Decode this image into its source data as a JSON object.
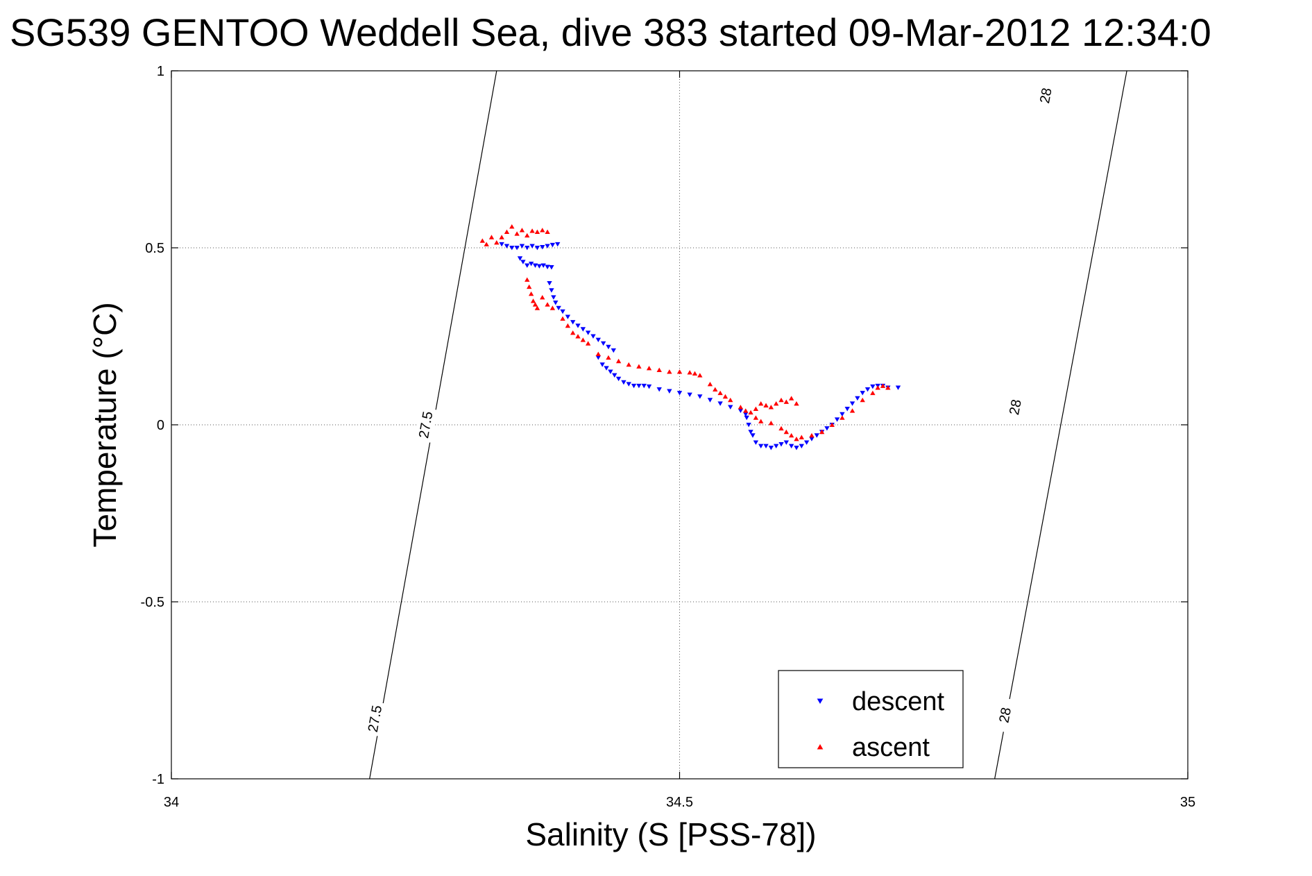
{
  "chart_data": {
    "type": "scatter",
    "title": "SG539 GENTOO Weddell Sea, dive 383 started 09-Mar-2012 12:34:0",
    "xlabel": "Salinity (S [PSS-78])",
    "ylabel": "Temperature (°C)",
    "xlim": [
      34,
      35
    ],
    "ylim": [
      -1,
      1
    ],
    "x_ticks": [
      34,
      34.5,
      35
    ],
    "x_tick_labels": [
      "34",
      "34.5",
      "35"
    ],
    "y_ticks": [
      -1,
      -0.5,
      0,
      0.5,
      1
    ],
    "y_tick_labels": [
      "-1",
      "-0.5",
      "0",
      "0.5",
      "1"
    ],
    "grid": true,
    "legend_position": "bottom-right",
    "contours": [
      {
        "name": "27.5",
        "label_positions": [
          [
            34.25,
            0.0
          ],
          [
            34.2,
            -0.83
          ]
        ],
        "x_at_top": 34.32,
        "x_at_bottom": 34.195
      },
      {
        "name": "28",
        "label_positions": [
          [
            34.86,
            0.93
          ],
          [
            34.83,
            0.05
          ],
          [
            34.82,
            -0.82
          ]
        ],
        "x_at_top": 34.94,
        "x_at_bottom": 34.81
      }
    ],
    "series": [
      {
        "name": "descent",
        "color": "#0000ff",
        "marker": "triangle-down",
        "points": [
          [
            34.325,
            0.51
          ],
          [
            34.33,
            0.505
          ],
          [
            34.335,
            0.5
          ],
          [
            34.34,
            0.5
          ],
          [
            34.345,
            0.505
          ],
          [
            34.35,
            0.5
          ],
          [
            34.355,
            0.505
          ],
          [
            34.36,
            0.5
          ],
          [
            34.365,
            0.502
          ],
          [
            34.37,
            0.505
          ],
          [
            34.375,
            0.508
          ],
          [
            34.38,
            0.51
          ],
          [
            34.343,
            0.47
          ],
          [
            34.346,
            0.46
          ],
          [
            34.35,
            0.45
          ],
          [
            34.354,
            0.455
          ],
          [
            34.358,
            0.45
          ],
          [
            34.362,
            0.448
          ],
          [
            34.366,
            0.45
          ],
          [
            34.37,
            0.446
          ],
          [
            34.374,
            0.445
          ],
          [
            34.372,
            0.4
          ],
          [
            34.374,
            0.38
          ],
          [
            34.376,
            0.36
          ],
          [
            34.378,
            0.345
          ],
          [
            34.381,
            0.33
          ],
          [
            34.385,
            0.32
          ],
          [
            34.39,
            0.305
          ],
          [
            34.395,
            0.29
          ],
          [
            34.4,
            0.28
          ],
          [
            34.405,
            0.27
          ],
          [
            34.41,
            0.26
          ],
          [
            34.415,
            0.25
          ],
          [
            34.42,
            0.24
          ],
          [
            34.425,
            0.23
          ],
          [
            34.43,
            0.22
          ],
          [
            34.435,
            0.21
          ],
          [
            34.42,
            0.19
          ],
          [
            34.424,
            0.17
          ],
          [
            34.428,
            0.16
          ],
          [
            34.432,
            0.15
          ],
          [
            34.436,
            0.14
          ],
          [
            34.44,
            0.13
          ],
          [
            34.445,
            0.12
          ],
          [
            34.45,
            0.115
          ],
          [
            34.455,
            0.11
          ],
          [
            34.46,
            0.11
          ],
          [
            34.465,
            0.11
          ],
          [
            34.47,
            0.108
          ],
          [
            34.48,
            0.1
          ],
          [
            34.49,
            0.095
          ],
          [
            34.5,
            0.09
          ],
          [
            34.51,
            0.085
          ],
          [
            34.52,
            0.08
          ],
          [
            34.53,
            0.07
          ],
          [
            34.54,
            0.06
          ],
          [
            34.55,
            0.05
          ],
          [
            34.56,
            0.04
          ],
          [
            34.565,
            0.03
          ],
          [
            34.566,
            0.02
          ],
          [
            34.568,
            0.0
          ],
          [
            34.57,
            -0.02
          ],
          [
            34.572,
            -0.03
          ],
          [
            34.575,
            -0.05
          ],
          [
            34.58,
            -0.06
          ],
          [
            34.585,
            -0.06
          ],
          [
            34.59,
            -0.065
          ],
          [
            34.595,
            -0.06
          ],
          [
            34.6,
            -0.055
          ],
          [
            34.605,
            -0.05
          ],
          [
            34.61,
            -0.06
          ],
          [
            34.615,
            -0.065
          ],
          [
            34.62,
            -0.06
          ],
          [
            34.625,
            -0.05
          ],
          [
            34.63,
            -0.04
          ],
          [
            34.635,
            -0.03
          ],
          [
            34.64,
            -0.02
          ],
          [
            34.645,
            -0.01
          ],
          [
            34.65,
            0.0
          ],
          [
            34.655,
            0.015
          ],
          [
            34.66,
            0.03
          ],
          [
            34.665,
            0.045
          ],
          [
            34.67,
            0.06
          ],
          [
            34.675,
            0.075
          ],
          [
            34.68,
            0.09
          ],
          [
            34.685,
            0.1
          ],
          [
            34.69,
            0.108
          ],
          [
            34.695,
            0.11
          ],
          [
            34.7,
            0.11
          ],
          [
            34.705,
            0.105
          ],
          [
            34.715,
            0.105
          ]
        ]
      },
      {
        "name": "ascent",
        "color": "#ff0000",
        "marker": "triangle-up",
        "points": [
          [
            34.306,
            0.52
          ],
          [
            34.31,
            0.51
          ],
          [
            34.315,
            0.53
          ],
          [
            34.32,
            0.515
          ],
          [
            34.325,
            0.53
          ],
          [
            34.33,
            0.545
          ],
          [
            34.335,
            0.56
          ],
          [
            34.34,
            0.54
          ],
          [
            34.345,
            0.55
          ],
          [
            34.35,
            0.535
          ],
          [
            34.355,
            0.548
          ],
          [
            34.36,
            0.545
          ],
          [
            34.365,
            0.55
          ],
          [
            34.37,
            0.545
          ],
          [
            34.35,
            0.41
          ],
          [
            34.352,
            0.39
          ],
          [
            34.354,
            0.37
          ],
          [
            34.356,
            0.35
          ],
          [
            34.358,
            0.34
          ],
          [
            34.36,
            0.33
          ],
          [
            34.365,
            0.36
          ],
          [
            34.37,
            0.34
          ],
          [
            34.375,
            0.33
          ],
          [
            34.385,
            0.3
          ],
          [
            34.39,
            0.28
          ],
          [
            34.395,
            0.26
          ],
          [
            34.4,
            0.25
          ],
          [
            34.405,
            0.24
          ],
          [
            34.41,
            0.23
          ],
          [
            34.42,
            0.2
          ],
          [
            34.43,
            0.19
          ],
          [
            34.44,
            0.18
          ],
          [
            34.45,
            0.17
          ],
          [
            34.46,
            0.165
          ],
          [
            34.47,
            0.16
          ],
          [
            34.48,
            0.155
          ],
          [
            34.49,
            0.15
          ],
          [
            34.5,
            0.15
          ],
          [
            34.51,
            0.148
          ],
          [
            34.515,
            0.145
          ],
          [
            34.52,
            0.14
          ],
          [
            34.53,
            0.115
          ],
          [
            34.535,
            0.1
          ],
          [
            34.54,
            0.09
          ],
          [
            34.545,
            0.08
          ],
          [
            34.55,
            0.07
          ],
          [
            34.56,
            0.05
          ],
          [
            34.565,
            0.04
          ],
          [
            34.57,
            0.035
          ],
          [
            34.575,
            0.045
          ],
          [
            34.58,
            0.06
          ],
          [
            34.585,
            0.055
          ],
          [
            34.59,
            0.05
          ],
          [
            34.595,
            0.06
          ],
          [
            34.6,
            0.07
          ],
          [
            34.605,
            0.065
          ],
          [
            34.61,
            0.075
          ],
          [
            34.615,
            0.06
          ],
          [
            34.575,
            0.02
          ],
          [
            34.58,
            0.01
          ],
          [
            34.59,
            0.005
          ],
          [
            34.6,
            -0.01
          ],
          [
            34.605,
            -0.02
          ],
          [
            34.61,
            -0.03
          ],
          [
            34.615,
            -0.04
          ],
          [
            34.62,
            -0.035
          ],
          [
            34.63,
            -0.03
          ],
          [
            34.64,
            -0.02
          ],
          [
            34.65,
            0.0
          ],
          [
            34.66,
            0.02
          ],
          [
            34.67,
            0.04
          ],
          [
            34.68,
            0.07
          ],
          [
            34.69,
            0.09
          ],
          [
            34.695,
            0.105
          ],
          [
            34.7,
            0.11
          ],
          [
            34.705,
            0.105
          ]
        ]
      }
    ]
  }
}
